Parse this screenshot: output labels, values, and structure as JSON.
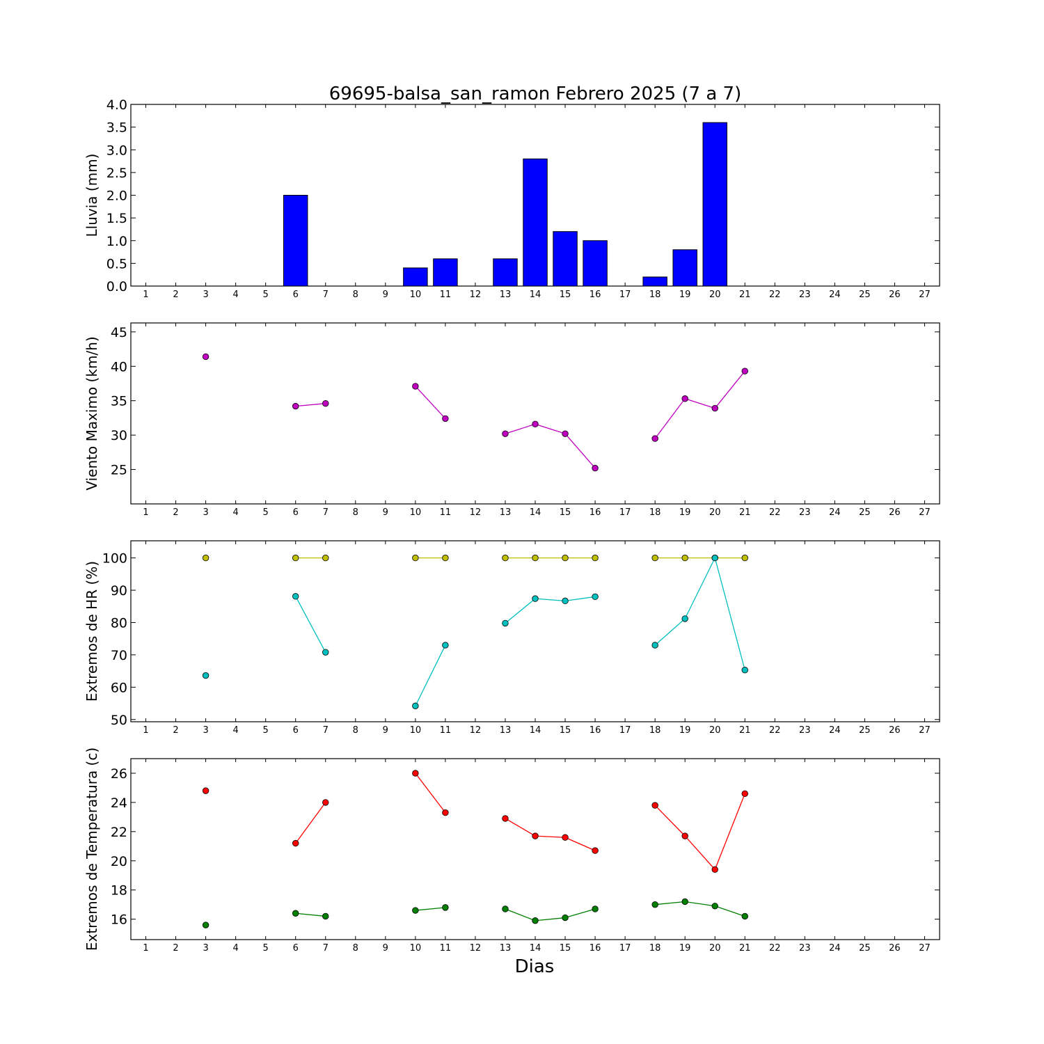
{
  "title": "69695-balsa_san_ramon Febrero 2025  (7 a 7)",
  "xlabel": "Dias",
  "x_ticks": [
    1,
    2,
    3,
    4,
    5,
    6,
    7,
    8,
    9,
    10,
    11,
    12,
    13,
    14,
    15,
    16,
    17,
    18,
    19,
    20,
    21,
    22,
    23,
    24,
    25,
    26,
    27
  ],
  "x_range": [
    0.5,
    27.5
  ],
  "colors": {
    "rain": "#0000ff",
    "wind": "#bf00bf",
    "hr_max": "#bfbf00",
    "hr_min": "#00bfbf",
    "temp_max": "#ff0000",
    "temp_min": "#007f00"
  },
  "chart_data": [
    {
      "type": "bar",
      "ylabel": "Lluvia (mm)",
      "ylim": [
        0.0,
        4.0
      ],
      "yticks": [
        "0.0",
        "0.5",
        "1.0",
        "1.5",
        "2.0",
        "2.5",
        "3.0",
        "3.5",
        "4.0"
      ],
      "x": [
        1,
        2,
        3,
        4,
        5,
        6,
        7,
        8,
        9,
        10,
        11,
        12,
        13,
        14,
        15,
        16,
        17,
        18,
        19,
        20,
        21,
        22,
        23,
        24,
        25,
        26,
        27
      ],
      "series": [
        {
          "color_key": "rain",
          "values": [
            0,
            0,
            0,
            0,
            0,
            2.0,
            0,
            0,
            0,
            0.4,
            0.6,
            0,
            0.6,
            2.8,
            1.2,
            1.0,
            0,
            0.2,
            0.8,
            3.6,
            0,
            0,
            0,
            0,
            0,
            0,
            0
          ]
        }
      ]
    },
    {
      "type": "line",
      "ylabel": "Viento Maximo (km/h)",
      "ylim": [
        20,
        46.3
      ],
      "yticks": [
        "25",
        "30",
        "35",
        "40",
        "45"
      ],
      "x": [
        1,
        2,
        3,
        4,
        5,
        6,
        7,
        8,
        9,
        10,
        11,
        12,
        13,
        14,
        15,
        16,
        17,
        18,
        19,
        20,
        21
      ],
      "series": [
        {
          "color_key": "wind",
          "values": [
            null,
            null,
            41.4,
            null,
            null,
            34.2,
            34.6,
            null,
            null,
            37.1,
            32.4,
            null,
            30.2,
            31.6,
            30.2,
            25.2,
            null,
            29.5,
            35.3,
            33.9,
            39.3
          ]
        }
      ]
    },
    {
      "type": "line",
      "ylabel": "Extremos de HR (%)",
      "ylim": [
        49.3,
        105.3
      ],
      "yticks": [
        "50",
        "60",
        "70",
        "80",
        "90",
        "100"
      ],
      "x": [
        1,
        2,
        3,
        4,
        5,
        6,
        7,
        8,
        9,
        10,
        11,
        12,
        13,
        14,
        15,
        16,
        17,
        18,
        19,
        20,
        21
      ],
      "series": [
        {
          "color_key": "hr_max",
          "values": [
            null,
            null,
            100,
            null,
            null,
            100,
            100,
            null,
            null,
            100,
            100,
            null,
            100,
            100,
            100,
            100,
            null,
            100,
            100,
            100,
            100
          ]
        },
        {
          "color_key": "hr_min",
          "values": [
            null,
            null,
            63.6,
            null,
            null,
            88.1,
            70.8,
            null,
            null,
            54.2,
            73.0,
            null,
            79.8,
            87.4,
            86.7,
            88.0,
            null,
            73.0,
            81.2,
            100,
            65.3
          ]
        }
      ]
    },
    {
      "type": "line",
      "ylabel": "Extremos de Temperatura (c)",
      "ylim": [
        14.6,
        27.0
      ],
      "yticks": [
        "16",
        "18",
        "20",
        "22",
        "24",
        "26"
      ],
      "x": [
        1,
        2,
        3,
        4,
        5,
        6,
        7,
        8,
        9,
        10,
        11,
        12,
        13,
        14,
        15,
        16,
        17,
        18,
        19,
        20,
        21
      ],
      "series": [
        {
          "color_key": "temp_max",
          "values": [
            null,
            null,
            24.8,
            null,
            null,
            21.2,
            24.0,
            null,
            null,
            26.0,
            23.3,
            null,
            22.9,
            21.7,
            21.6,
            20.7,
            null,
            23.8,
            21.7,
            19.4,
            24.6
          ]
        },
        {
          "color_key": "temp_min",
          "values": [
            null,
            null,
            15.6,
            null,
            null,
            16.4,
            16.2,
            null,
            null,
            16.6,
            16.8,
            null,
            16.7,
            15.9,
            16.1,
            16.7,
            null,
            17.0,
            17.2,
            16.9,
            16.2
          ]
        }
      ]
    }
  ]
}
